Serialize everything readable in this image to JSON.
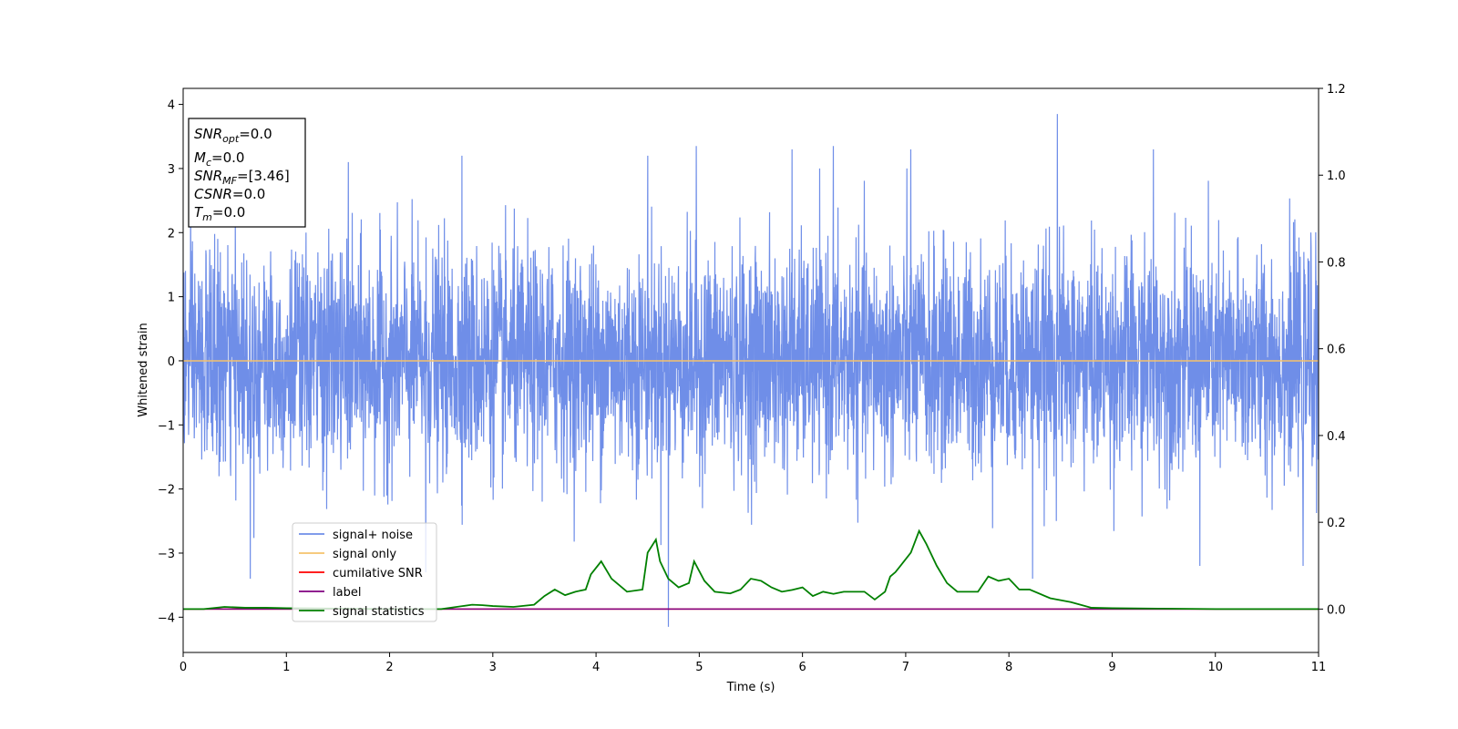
{
  "chart_data": {
    "type": "line",
    "xlabel": "Time (s)",
    "ylabel": "Whitened strain",
    "xlim": [
      0,
      11
    ],
    "ylim_left": [
      -4.55,
      4.25
    ],
    "ylim_right": [
      -0.1,
      1.2
    ],
    "x_ticks": [
      0,
      1,
      2,
      3,
      4,
      5,
      6,
      7,
      8,
      9,
      10,
      11
    ],
    "y_ticks_left": [
      {
        "v": 4,
        "label": "4"
      },
      {
        "v": 3,
        "label": "3"
      },
      {
        "v": 2,
        "label": "2"
      },
      {
        "v": 1,
        "label": "1"
      },
      {
        "v": 0,
        "label": "0"
      },
      {
        "v": -1,
        "label": "−1"
      },
      {
        "v": -2,
        "label": "−2"
      },
      {
        "v": -3,
        "label": "−3"
      },
      {
        "v": -4,
        "label": "−4"
      }
    ],
    "y_ticks_right": [
      {
        "v": 1.2,
        "label": "1.2"
      },
      {
        "v": 1.0,
        "label": "1.0"
      },
      {
        "v": 0.8,
        "label": "0.8"
      },
      {
        "v": 0.6,
        "label": "0.6"
      },
      {
        "v": 0.4,
        "label": "0.4"
      },
      {
        "v": 0.2,
        "label": "0.2"
      },
      {
        "v": 0.0,
        "label": "0.0"
      }
    ],
    "grid": false,
    "legend_position": "lower-left",
    "series": [
      {
        "name": "signal+ noise",
        "axis": "left",
        "color": "#6f8ee8",
        "noise_std": 0.85,
        "duration_s": 11,
        "notable_peaks": [
          {
            "x": 0.65,
            "y": -3.4
          },
          {
            "x": 1.6,
            "y": 3.1
          },
          {
            "x": 2.35,
            "y": -3.3
          },
          {
            "x": 2.7,
            "y": 3.2
          },
          {
            "x": 4.5,
            "y": 3.2
          },
          {
            "x": 4.7,
            "y": -4.15
          },
          {
            "x": 4.97,
            "y": 3.35
          },
          {
            "x": 5.9,
            "y": 3.3
          },
          {
            "x": 6.3,
            "y": 3.35
          },
          {
            "x": 7.05,
            "y": 3.3
          },
          {
            "x": 8.47,
            "y": 3.85
          },
          {
            "x": 8.23,
            "y": -3.4
          },
          {
            "x": 9.4,
            "y": 3.3
          },
          {
            "x": 9.85,
            "y": -3.2
          },
          {
            "x": 10.85,
            "y": -3.2
          }
        ]
      },
      {
        "name": "signal only",
        "axis": "left",
        "color": "#f5c26b",
        "x": [
          0,
          11
        ],
        "y": [
          0,
          0
        ]
      },
      {
        "name": "cumilative SNR",
        "axis": "right",
        "color": "#ff0000",
        "x": [
          0,
          11
        ],
        "y": [
          0,
          0
        ]
      },
      {
        "name": "label",
        "axis": "right",
        "color": "#800080",
        "x": [
          0,
          11
        ],
        "y": [
          0,
          0
        ]
      },
      {
        "name": "signal statistics",
        "axis": "right",
        "color": "#008000",
        "x": [
          0,
          0.2,
          0.4,
          0.6,
          0.8,
          1.0,
          1.5,
          2.0,
          2.5,
          2.8,
          2.9,
          3.0,
          3.2,
          3.4,
          3.5,
          3.6,
          3.7,
          3.8,
          3.9,
          3.95,
          4.05,
          4.15,
          4.3,
          4.45,
          4.5,
          4.58,
          4.62,
          4.7,
          4.8,
          4.9,
          4.95,
          5.05,
          5.15,
          5.3,
          5.4,
          5.5,
          5.6,
          5.7,
          5.8,
          5.9,
          6.0,
          6.1,
          6.2,
          6.3,
          6.4,
          6.5,
          6.6,
          6.7,
          6.8,
          6.85,
          6.9,
          6.95,
          7.05,
          7.13,
          7.2,
          7.3,
          7.4,
          7.5,
          7.6,
          7.7,
          7.8,
          7.9,
          8.0,
          8.1,
          8.2,
          8.4,
          8.6,
          8.8,
          9.0,
          9.5,
          10.0,
          10.5,
          11.0
        ],
        "y": [
          0.0,
          0.0,
          0.005,
          0.003,
          0.003,
          0.002,
          0.001,
          0.0,
          0.0,
          0.01,
          0.009,
          0.007,
          0.005,
          0.01,
          0.03,
          0.045,
          0.032,
          0.04,
          0.045,
          0.08,
          0.11,
          0.07,
          0.04,
          0.045,
          0.13,
          0.16,
          0.11,
          0.07,
          0.05,
          0.06,
          0.11,
          0.065,
          0.04,
          0.036,
          0.045,
          0.07,
          0.065,
          0.05,
          0.04,
          0.044,
          0.05,
          0.03,
          0.04,
          0.035,
          0.04,
          0.04,
          0.04,
          0.022,
          0.04,
          0.075,
          0.085,
          0.1,
          0.13,
          0.18,
          0.15,
          0.1,
          0.06,
          0.04,
          0.04,
          0.04,
          0.075,
          0.065,
          0.07,
          0.045,
          0.045,
          0.025,
          0.016,
          0.003,
          0.002,
          0.001,
          0.0,
          0.0,
          0.0
        ]
      }
    ]
  },
  "info_box": {
    "lines": [
      {
        "base": "SNR",
        "sub": "opt",
        "rest": "=0.0"
      },
      {
        "base": "M",
        "sub": "c",
        "rest": "=0.0"
      },
      {
        "base": "SNR",
        "sub": "MF",
        "rest": "=[3.46]"
      },
      {
        "base": "CSNR",
        "sub": "",
        "rest": "=0.0"
      },
      {
        "base": "T",
        "sub": "m",
        "rest": "=0.0"
      }
    ]
  }
}
